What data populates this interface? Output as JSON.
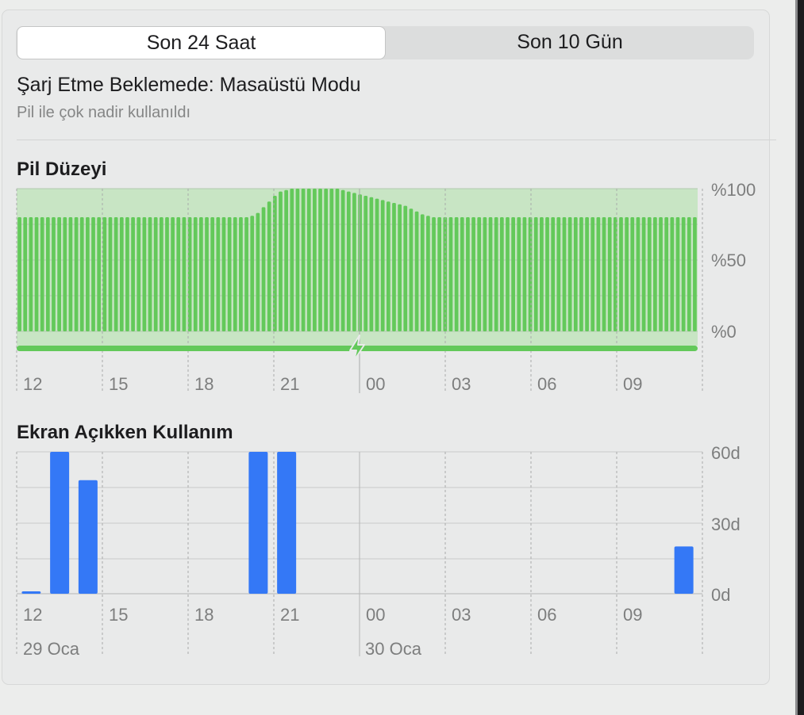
{
  "tabs": [
    {
      "label": "Son 24 Saat",
      "selected": true
    },
    {
      "label": "Son 10 Gün",
      "selected": false
    }
  ],
  "status": {
    "title": "Şarj Etme Beklemede: Masaüstü Modu",
    "subtitle": "Pil ile çok nadir kullanıldı"
  },
  "colors": {
    "battery_bar": "#63c95a",
    "battery_bg": "#c8e5c4",
    "usage_bar": "#3478f6",
    "charging_icon": "#63c95a"
  },
  "icons": {
    "charging": "lightning-bolt-icon"
  },
  "chart_data": [
    {
      "type": "bar",
      "title": "Pil Düzeyi",
      "y_ticks": [
        "%100",
        "%50",
        "%0"
      ],
      "ylim": [
        0,
        100
      ],
      "x_ticks": [
        "12",
        "15",
        "18",
        "21",
        "00",
        "03",
        "06",
        "09"
      ],
      "charging_indicator": true,
      "values": [
        80,
        80,
        80,
        80,
        80,
        80,
        80,
        80,
        80,
        80,
        80,
        80,
        80,
        80,
        80,
        80,
        80,
        80,
        80,
        80,
        80,
        80,
        80,
        80,
        80,
        80,
        80,
        80,
        80,
        80,
        80,
        80,
        80,
        80,
        80,
        80,
        80,
        80,
        80,
        80,
        80,
        81,
        83,
        87,
        91,
        95,
        98,
        99,
        100,
        100,
        100,
        100,
        100,
        100,
        100,
        100,
        100,
        99,
        98,
        97,
        96,
        95,
        94,
        93,
        92,
        91,
        90,
        89,
        88,
        86,
        84,
        82,
        81,
        80,
        80,
        80,
        80,
        80,
        80,
        80,
        80,
        80,
        80,
        80,
        80,
        80,
        80,
        80,
        80,
        80,
        80,
        80,
        80,
        80,
        80,
        80,
        80,
        80,
        80,
        80,
        80,
        80,
        80,
        80,
        80,
        80,
        80,
        80,
        80,
        80,
        80,
        80,
        80,
        80,
        80,
        80,
        80,
        80,
        80,
        80
      ]
    },
    {
      "type": "bar",
      "title": "Ekran Açıkken Kullanım",
      "y_ticks": [
        "60d",
        "30d",
        "0d"
      ],
      "ylim": [
        0,
        60
      ],
      "x_ticks": [
        "12",
        "15",
        "18",
        "21",
        "00",
        "03",
        "06",
        "09"
      ],
      "date_labels": [
        "29 Oca",
        "30 Oca"
      ],
      "values": [
        1,
        60,
        48,
        0,
        0,
        0,
        0,
        0,
        60,
        60,
        0,
        0,
        0,
        0,
        0,
        0,
        0,
        0,
        0,
        0,
        0,
        0,
        0,
        20
      ]
    }
  ]
}
